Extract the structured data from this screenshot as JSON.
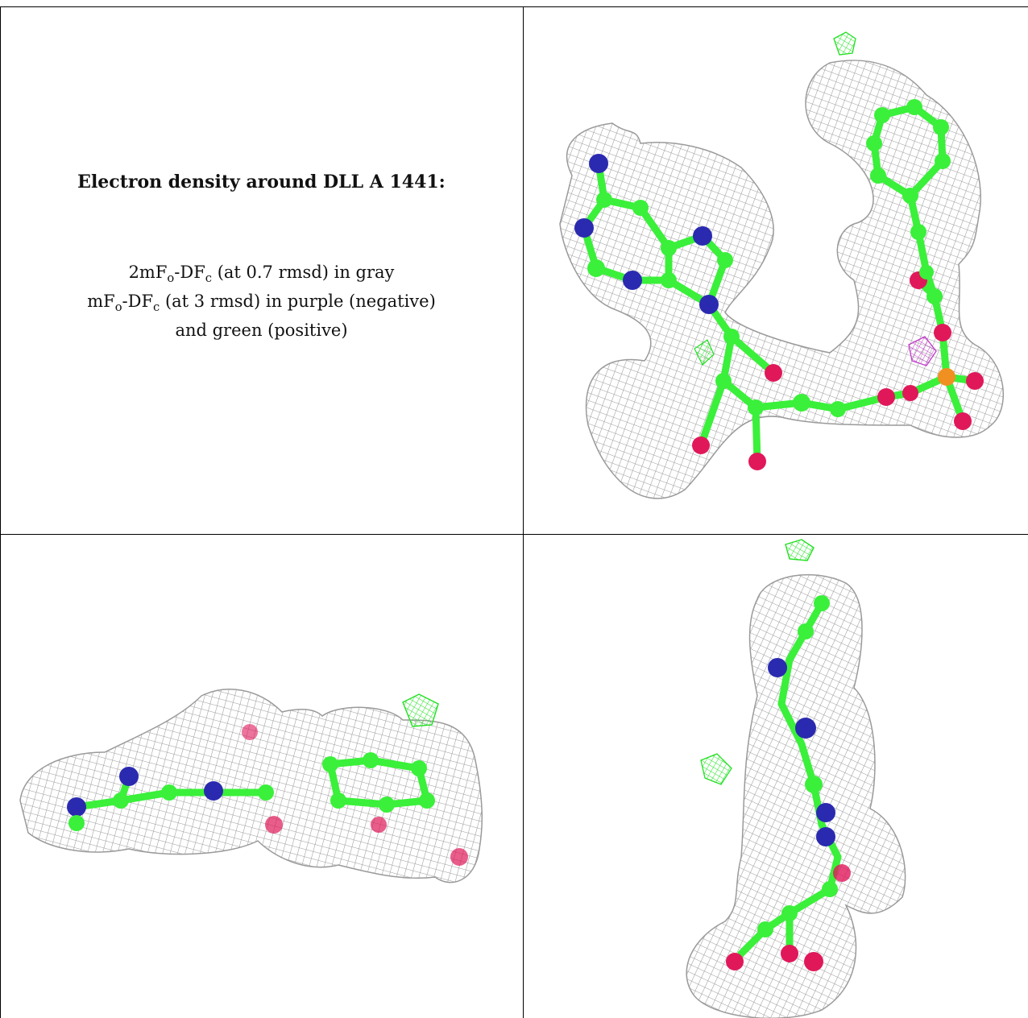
{
  "caption": {
    "title": "Electron density around DLL A 1441:",
    "line1_prefix": "2mF",
    "line1_sub1": "o",
    "line1_mid": "-DF",
    "line1_sub2": "c",
    "line1_suffix": " (at 0.7 rmsd) in gray",
    "line2_prefix": "mF",
    "line2_sub1": "o",
    "line2_mid": "-DF",
    "line2_sub2": "c",
    "line2_suffix": " (at 3 rmsd) in purple (negative)",
    "line3": "and green (positive)"
  },
  "colors": {
    "mesh_2fofc": "#9a9a9a",
    "mesh_negative": "#c03cc8",
    "mesh_positive": "#22e022",
    "carbon": "#3af03a",
    "nitrogen": "#2a2ab0",
    "oxygen": "#e0185a",
    "phosphorus": "#f09020",
    "grid_line": "#000000"
  },
  "panels": [
    {
      "name": "view-front"
    },
    {
      "name": "view-side"
    },
    {
      "name": "view-end"
    }
  ]
}
